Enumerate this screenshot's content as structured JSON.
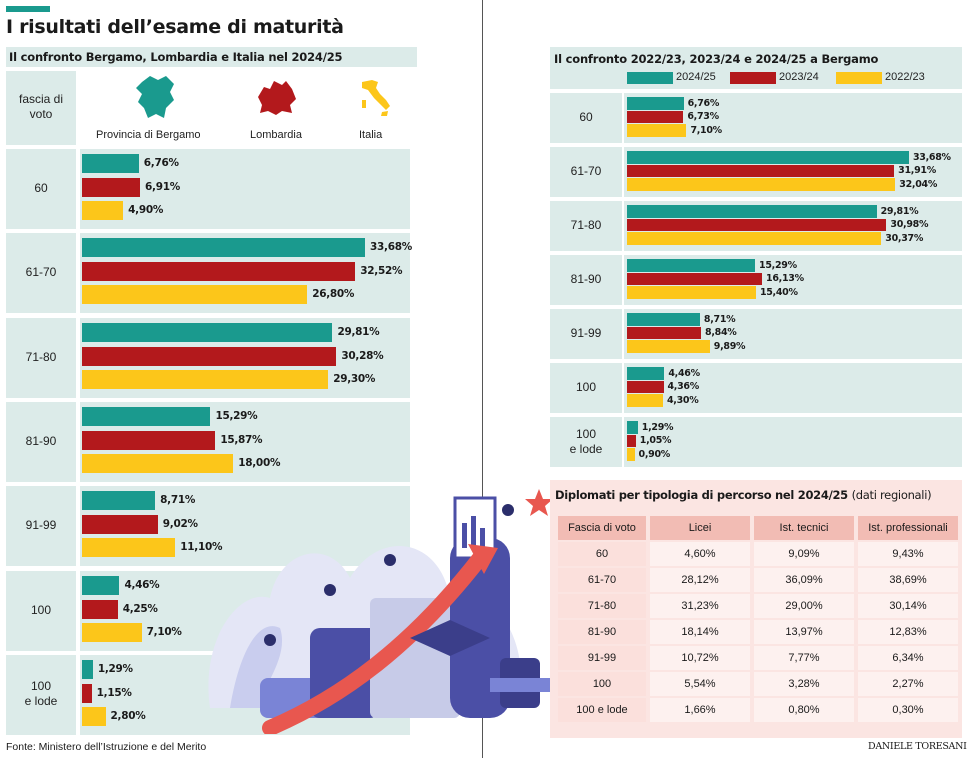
{
  "title": "I risultati dell’esame di maturità",
  "footer": {
    "source": "Fonte: Ministero dell’Istruzione e del Merito",
    "author": "DANIELE TORESANI"
  },
  "colors": {
    "teal": "#1a9a8e",
    "red": "#b3191c",
    "yellow": "#fcc61a",
    "band": "#dcebe9"
  },
  "chart_data": [
    {
      "type": "bar",
      "orientation": "horizontal",
      "title": "Il confronto Bergamo, Lombardia e Italia nel 2024/25",
      "category_header": "fascia di voto",
      "categories": [
        "60",
        "61-70",
        "71-80",
        "81-90",
        "91-99",
        "100",
        "100 e lode"
      ],
      "series": [
        {
          "name": "Provincia di Bergamo",
          "color": "#1a9a8e",
          "values": [
            6.76,
            33.68,
            29.81,
            15.29,
            8.71,
            4.46,
            1.29
          ],
          "labels": [
            "6,76%",
            "33,68%",
            "29,81%",
            "15,29%",
            "8,71%",
            "4,46%",
            "1,29%"
          ]
        },
        {
          "name": "Lombardia",
          "color": "#b3191c",
          "values": [
            6.91,
            32.52,
            30.28,
            15.87,
            9.02,
            4.25,
            1.15
          ],
          "labels": [
            "6,91%",
            "32,52%",
            "30,28%",
            "15,87%",
            "9,02%",
            "4,25%",
            "1,15%"
          ]
        },
        {
          "name": "Italia",
          "color": "#fcc61a",
          "values": [
            4.9,
            26.8,
            29.3,
            18.0,
            11.1,
            7.1,
            2.8
          ],
          "labels": [
            "4,90%",
            "26,80%",
            "29,30%",
            "18,00%",
            "11,10%",
            "7,10%",
            "2,80%"
          ]
        }
      ]
    },
    {
      "type": "bar",
      "orientation": "horizontal",
      "title": "Il confronto 2022/23, 2023/24 e 2024/25 a Bergamo",
      "categories": [
        "60",
        "61-70",
        "71-80",
        "81-90",
        "91-99",
        "100",
        "100 e lode"
      ],
      "series": [
        {
          "name": "2024/25",
          "color": "#1a9a8e",
          "values": [
            6.76,
            33.68,
            29.81,
            15.29,
            8.71,
            4.46,
            1.29
          ],
          "labels": [
            "6,76%",
            "33,68%",
            "29,81%",
            "15,29%",
            "8,71%",
            "4,46%",
            "1,29%"
          ]
        },
        {
          "name": "2023/24",
          "color": "#b3191c",
          "values": [
            6.73,
            31.91,
            30.98,
            16.13,
            8.84,
            4.36,
            1.05
          ],
          "labels": [
            "6,73%",
            "31,91%",
            "30,98%",
            "16,13%",
            "8,84%",
            "4,36%",
            "1,05%"
          ]
        },
        {
          "name": "2022/23",
          "color": "#fcc61a",
          "values": [
            7.1,
            32.04,
            30.37,
            15.4,
            9.89,
            4.3,
            0.9
          ],
          "labels": [
            "7,10%",
            "32,04%",
            "30,37%",
            "15,40%",
            "9,89%",
            "4,30%",
            "0,90%"
          ]
        }
      ]
    },
    {
      "type": "table",
      "title": "Diplomati per tipologia di percorso nel 2024/25",
      "title_note": "(dati regionali)",
      "columns": [
        "Fascia di voto",
        "Licei",
        "Ist. tecnici",
        "Ist. professionali"
      ],
      "rows": [
        [
          "60",
          "4,60%",
          "9,09%",
          "9,43%"
        ],
        [
          "61-70",
          "28,12%",
          "36,09%",
          "38,69%"
        ],
        [
          "71-80",
          "31,23%",
          "29,00%",
          "30,14%"
        ],
        [
          "81-90",
          "18,14%",
          "13,97%",
          "12,83%"
        ],
        [
          "91-99",
          "10,72%",
          "7,77%",
          "6,34%"
        ],
        [
          "100",
          "5,54%",
          "3,28%",
          "2,27%"
        ],
        [
          "100 e lode",
          "1,66%",
          "0,80%",
          "0,30%"
        ]
      ]
    }
  ]
}
